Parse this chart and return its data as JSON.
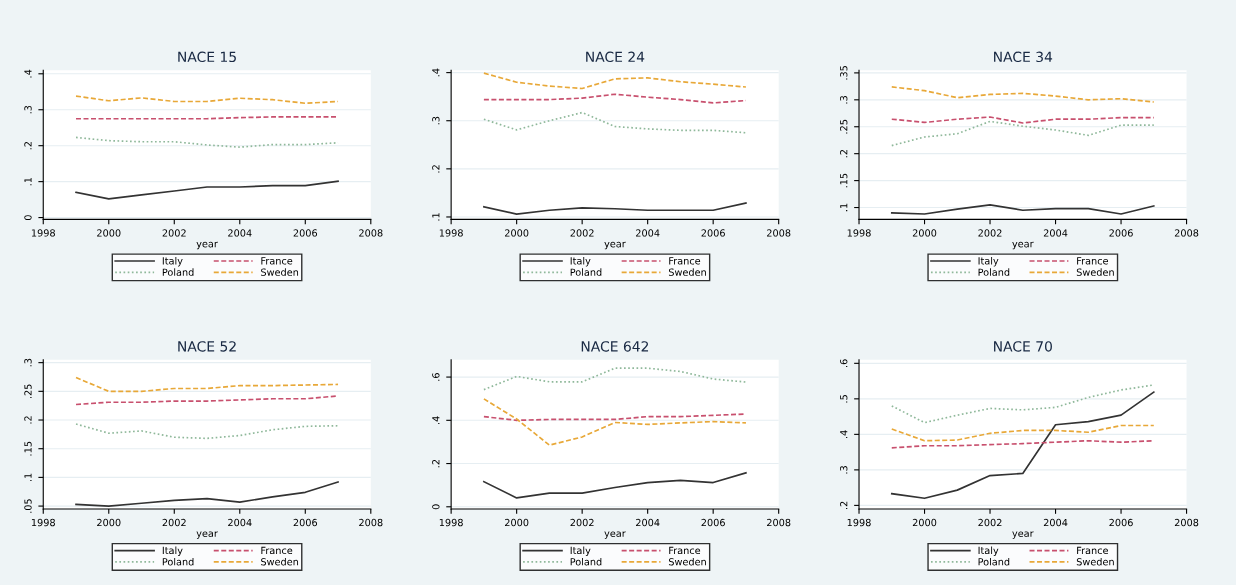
{
  "chart_data": [
    {
      "type": "line",
      "title": "NACE 15",
      "xlabel": "year",
      "x": [
        1999,
        2000,
        2001,
        2002,
        2003,
        2004,
        2005,
        2006,
        2007
      ],
      "xlim": [
        1998,
        2008
      ],
      "xticks": [
        1998,
        2000,
        2002,
        2004,
        2006,
        2008
      ],
      "ylim": [
        -0.005,
        0.41
      ],
      "yticks": [
        0,
        {
          "value": 0.1,
          "label": ".1"
        },
        {
          "value": 0.2,
          "label": ".2"
        },
        {
          "value": 0.3,
          "label": ".3"
        },
        {
          "value": 0.4,
          "label": ".4"
        }
      ],
      "grid": "y",
      "legend": "bottom",
      "series": [
        {
          "name": "Italy",
          "color": "#333333",
          "line_style": "solid",
          "values": [
            0.07,
            0.052,
            0.063,
            0.074,
            0.085,
            0.085,
            0.089,
            0.089,
            0.101
          ]
        },
        {
          "name": "France",
          "color": "#c8506e",
          "line_style": "dashed",
          "values": [
            0.275,
            0.275,
            0.275,
            0.275,
            0.275,
            0.278,
            0.28,
            0.28,
            0.28
          ]
        },
        {
          "name": "Poland",
          "color": "#8fb89a",
          "line_style": "dotted",
          "values": [
            0.223,
            0.214,
            0.211,
            0.211,
            0.202,
            0.196,
            0.203,
            0.203,
            0.208
          ]
        },
        {
          "name": "Sweden",
          "color": "#e8a838",
          "line_style": "dashed",
          "values": [
            0.338,
            0.325,
            0.333,
            0.323,
            0.323,
            0.332,
            0.328,
            0.318,
            0.323
          ]
        }
      ]
    },
    {
      "type": "line",
      "title": "NACE 24",
      "xlabel": "year",
      "x": [
        1999,
        2000,
        2001,
        2002,
        2003,
        2004,
        2005,
        2006,
        2007
      ],
      "xlim": [
        1998,
        2008
      ],
      "xticks": [
        1998,
        2000,
        2002,
        2004,
        2006,
        2008
      ],
      "ylim": [
        0.095,
        0.405
      ],
      "yticks": [
        {
          "value": 0.1,
          "label": ".1"
        },
        {
          "value": 0.2,
          "label": ".2"
        },
        {
          "value": 0.3,
          "label": ".3"
        },
        {
          "value": 0.4,
          "label": ".4"
        }
      ],
      "grid": "y",
      "legend": "bottom",
      "series": [
        {
          "name": "Italy",
          "color": "#333333",
          "line_style": "solid",
          "values": [
            0.121,
            0.106,
            0.114,
            0.119,
            0.117,
            0.114,
            0.114,
            0.114,
            0.129
          ]
        },
        {
          "name": "France",
          "color": "#c8506e",
          "line_style": "dashed",
          "values": [
            0.344,
            0.344,
            0.344,
            0.347,
            0.355,
            0.349,
            0.344,
            0.337,
            0.342
          ]
        },
        {
          "name": "Poland",
          "color": "#8fb89a",
          "line_style": "dotted",
          "values": [
            0.303,
            0.281,
            0.3,
            0.317,
            0.288,
            0.283,
            0.28,
            0.28,
            0.275
          ]
        },
        {
          "name": "Sweden",
          "color": "#e8a838",
          "line_style": "dashed",
          "values": [
            0.399,
            0.38,
            0.372,
            0.367,
            0.387,
            0.389,
            0.381,
            0.376,
            0.37
          ]
        }
      ]
    },
    {
      "type": "line",
      "title": "NACE 34",
      "xlabel": "year",
      "x": [
        1999,
        2000,
        2001,
        2002,
        2003,
        2004,
        2005,
        2006,
        2007
      ],
      "xlim": [
        1998,
        2008
      ],
      "xticks": [
        1998,
        2000,
        2002,
        2004,
        2006,
        2008
      ],
      "ylim": [
        0.078,
        0.355
      ],
      "yticks": [
        {
          "value": 0.1,
          "label": ".1"
        },
        {
          "value": 0.15,
          "label": ".15"
        },
        {
          "value": 0.2,
          "label": ".2"
        },
        {
          "value": 0.25,
          "label": ".25"
        },
        {
          "value": 0.3,
          "label": ".3"
        },
        {
          "value": 0.35,
          "label": ".35"
        }
      ],
      "grid": "y",
      "legend": "bottom",
      "series": [
        {
          "name": "Italy",
          "color": "#333333",
          "line_style": "solid",
          "values": [
            0.09,
            0.088,
            0.097,
            0.105,
            0.095,
            0.098,
            0.098,
            0.088,
            0.103
          ]
        },
        {
          "name": "France",
          "color": "#c8506e",
          "line_style": "dashed",
          "values": [
            0.264,
            0.258,
            0.264,
            0.268,
            0.257,
            0.264,
            0.264,
            0.267,
            0.267
          ]
        },
        {
          "name": "Poland",
          "color": "#8fb89a",
          "line_style": "dotted",
          "values": [
            0.215,
            0.231,
            0.237,
            0.26,
            0.251,
            0.244,
            0.234,
            0.253,
            0.253
          ]
        },
        {
          "name": "Sweden",
          "color": "#e8a838",
          "line_style": "dashed",
          "values": [
            0.324,
            0.317,
            0.304,
            0.31,
            0.312,
            0.307,
            0.3,
            0.302,
            0.296
          ]
        }
      ]
    },
    {
      "type": "line",
      "title": "NACE 52",
      "xlabel": "year",
      "x": [
        1999,
        2000,
        2001,
        2002,
        2003,
        2004,
        2005,
        2006,
        2007
      ],
      "xlim": [
        1998,
        2008
      ],
      "xticks": [
        1998,
        2000,
        2002,
        2004,
        2006,
        2008
      ],
      "ylim": [
        0.045,
        0.305
      ],
      "yticks": [
        {
          "value": 0.05,
          "label": ".05"
        },
        {
          "value": 0.1,
          "label": ".1"
        },
        {
          "value": 0.15,
          "label": ".15"
        },
        {
          "value": 0.2,
          "label": ".2"
        },
        {
          "value": 0.25,
          "label": ".25"
        },
        {
          "value": 0.3,
          "label": ".3"
        }
      ],
      "grid": "y",
      "legend": "bottom",
      "series": [
        {
          "name": "Italy",
          "color": "#333333",
          "line_style": "solid",
          "values": [
            0.053,
            0.05,
            0.055,
            0.06,
            0.063,
            0.057,
            0.066,
            0.074,
            0.092
          ]
        },
        {
          "name": "France",
          "color": "#c8506e",
          "line_style": "dashed",
          "values": [
            0.227,
            0.231,
            0.231,
            0.233,
            0.233,
            0.235,
            0.237,
            0.237,
            0.242
          ]
        },
        {
          "name": "Poland",
          "color": "#8fb89a",
          "line_style": "dotted",
          "values": [
            0.193,
            0.177,
            0.181,
            0.17,
            0.168,
            0.173,
            0.183,
            0.189,
            0.19
          ]
        },
        {
          "name": "Sweden",
          "color": "#e8a838",
          "line_style": "dashed",
          "values": [
            0.274,
            0.25,
            0.25,
            0.255,
            0.255,
            0.26,
            0.26,
            0.261,
            0.262
          ]
        }
      ]
    },
    {
      "type": "line",
      "title": "NACE 642",
      "xlabel": "year",
      "x": [
        1999,
        2000,
        2001,
        2002,
        2003,
        2004,
        2005,
        2006,
        2007
      ],
      "xlim": [
        1998,
        2008
      ],
      "xticks": [
        1998,
        2000,
        2002,
        2004,
        2006,
        2008
      ],
      "ylim": [
        -0.01,
        0.68
      ],
      "yticks": [
        0,
        {
          "value": 0.2,
          "label": ".2"
        },
        {
          "value": 0.4,
          "label": ".4"
        },
        {
          "value": 0.6,
          "label": ".6"
        }
      ],
      "grid": "y",
      "legend": "bottom",
      "series": [
        {
          "name": "Italy",
          "color": "#333333",
          "line_style": "solid",
          "values": [
            0.116,
            0.041,
            0.063,
            0.063,
            0.089,
            0.112,
            0.122,
            0.112,
            0.157
          ]
        },
        {
          "name": "France",
          "color": "#c8506e",
          "line_style": "dashed",
          "values": [
            0.417,
            0.4,
            0.404,
            0.404,
            0.404,
            0.417,
            0.417,
            0.423,
            0.429
          ]
        },
        {
          "name": "Poland",
          "color": "#8fb89a",
          "line_style": "dotted",
          "values": [
            0.542,
            0.603,
            0.578,
            0.578,
            0.641,
            0.641,
            0.626,
            0.591,
            0.577
          ]
        },
        {
          "name": "Sweden",
          "color": "#e8a838",
          "line_style": "dashed",
          "values": [
            0.499,
            0.406,
            0.285,
            0.323,
            0.39,
            0.381,
            0.388,
            0.394,
            0.388
          ]
        }
      ]
    },
    {
      "type": "line",
      "title": "NACE 70",
      "xlabel": "year",
      "x": [
        1999,
        2000,
        2001,
        2002,
        2003,
        2004,
        2005,
        2006,
        2007
      ],
      "xlim": [
        1998,
        2008
      ],
      "xticks": [
        1998,
        2000,
        2002,
        2004,
        2006,
        2008
      ],
      "ylim": [
        0.19,
        0.61
      ],
      "yticks": [
        {
          "value": 0.2,
          "label": ".2"
        },
        {
          "value": 0.3,
          "label": ".3"
        },
        {
          "value": 0.4,
          "label": ".4"
        },
        {
          "value": 0.5,
          "label": ".5"
        },
        {
          "value": 0.6,
          "label": ".6"
        }
      ],
      "grid": "y",
      "legend": "bottom",
      "series": [
        {
          "name": "Italy",
          "color": "#333333",
          "line_style": "solid",
          "values": [
            0.233,
            0.22,
            0.243,
            0.284,
            0.29,
            0.427,
            0.436,
            0.454,
            0.519
          ]
        },
        {
          "name": "France",
          "color": "#c8506e",
          "line_style": "dashed",
          "values": [
            0.362,
            0.368,
            0.368,
            0.371,
            0.374,
            0.378,
            0.382,
            0.378,
            0.382
          ]
        },
        {
          "name": "Poland",
          "color": "#8fb89a",
          "line_style": "dotted",
          "values": [
            0.48,
            0.433,
            0.454,
            0.473,
            0.469,
            0.476,
            0.504,
            0.525,
            0.539
          ]
        },
        {
          "name": "Sweden",
          "color": "#e8a838",
          "line_style": "dashed",
          "values": [
            0.415,
            0.382,
            0.384,
            0.403,
            0.411,
            0.411,
            0.406,
            0.425,
            0.425
          ]
        }
      ]
    }
  ]
}
